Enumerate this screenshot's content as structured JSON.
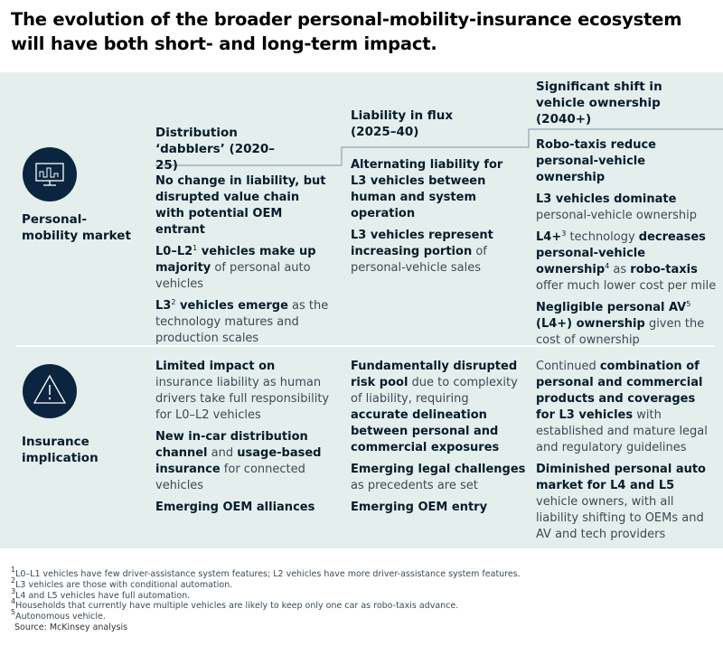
{
  "title": "The evolution of the broader personal-mobility-insurance ecosystem will have both short- and long-term impact.",
  "rows": [
    "Personal-mobility market",
    "Insurance implication"
  ],
  "columns": [
    "Distribution ‘dabblers’ (2020–25)",
    "Liability in flux (2025–40)",
    "Significant shift in vehicle ownership (2040+)"
  ],
  "cells": [
    [
      [
        [
          {
            "text": "No change in liability, but disrupted value chain with potential OEM entrant",
            "style": "bold"
          }
        ],
        [
          {
            "text": "L0–L2",
            "style": "bold"
          },
          {
            "text": "1",
            "style": "sup"
          },
          {
            "text": " vehicles make up majority",
            "style": "bold"
          },
          {
            "text": " of personal auto vehicles",
            "style": "regular"
          }
        ],
        [
          {
            "text": "L3",
            "style": "bold"
          },
          {
            "text": "2",
            "style": "sup"
          },
          {
            "text": " vehicles emerge",
            "style": "bold"
          },
          {
            "text": " as the technology matures and production scales",
            "style": "regular"
          }
        ]
      ],
      [
        [
          {
            "text": "Alternating liability for L3 vehicles between human and system operation",
            "style": "bold"
          }
        ],
        [
          {
            "text": "L3 vehicles represent increasing portion",
            "style": "bold"
          },
          {
            "text": " of personal-vehicle sales",
            "style": "regular"
          }
        ]
      ],
      [
        [
          {
            "text": "Robo-taxis reduce personal-vehicle ownership",
            "style": "bold"
          }
        ],
        [
          {
            "text": "L3 vehicles dominate",
            "style": "bold"
          },
          {
            "text": " personal-vehicle ownership",
            "style": "regular"
          }
        ],
        [
          {
            "text": "L4+",
            "style": "bold"
          },
          {
            "text": "3",
            "style": "sup"
          },
          {
            "text": " technology ",
            "style": "regular"
          },
          {
            "text": "decreases personal-vehicle ownership",
            "style": "bold"
          },
          {
            "text": "4",
            "style": "sup"
          },
          {
            "text": " as ",
            "style": "regular"
          },
          {
            "text": "robo-taxis",
            "style": "bold"
          },
          {
            "text": " offer much lower cost per mile",
            "style": "regular"
          }
        ],
        [
          {
            "text": "Negligible personal AV",
            "style": "bold"
          },
          {
            "text": "5",
            "style": "sup"
          },
          {
            "text": " (L4+) ownership",
            "style": "bold"
          },
          {
            "text": " given the cost of ownership",
            "style": "regular"
          }
        ]
      ]
    ],
    [
      [
        [
          {
            "text": "Limited impact on",
            "style": "bold"
          },
          {
            "text": " insurance liability as human drivers take full responsibility for L0–L2 vehicles",
            "style": "regular"
          }
        ],
        [
          {
            "text": "New in-car distribution channel",
            "style": "bold"
          },
          {
            "text": " and ",
            "style": "regular"
          },
          {
            "text": "usage-based insurance",
            "style": "bold"
          },
          {
            "text": " for connected vehicles",
            "style": "regular"
          }
        ],
        [
          {
            "text": "Emerging OEM alliances",
            "style": "bold"
          }
        ]
      ],
      [
        [
          {
            "text": "Fundamentally disrupted risk pool",
            "style": "bold"
          },
          {
            "text": " due to complexity of liability, requiring ",
            "style": "regular"
          },
          {
            "text": "accurate delineation between personal and commercial exposures",
            "style": "bold"
          }
        ],
        [
          {
            "text": "Emerging legal challenges",
            "style": "bold"
          },
          {
            "text": " as precedents are set",
            "style": "regular"
          }
        ],
        [
          {
            "text": "Emerging OEM entry",
            "style": "bold"
          }
        ]
      ],
      [
        [
          {
            "text": "Continued ",
            "style": "regular"
          },
          {
            "text": "combination of personal and commercial products and coverages for L3 vehicles",
            "style": "bold"
          },
          {
            "text": " with established and mature legal and regulatory guidelines",
            "style": "regular"
          }
        ],
        [
          {
            "text": "Diminished personal auto market for L4 and L5",
            "style": "bold"
          },
          {
            "text": " vehicle owners, with all liability shifting to OEMs and AV and tech providers",
            "style": "regular"
          }
        ]
      ]
    ]
  ],
  "footnotes": [
    [
      {
        "text": "1",
        "style": "sup"
      },
      {
        "text": "L0–L1 vehicles have few driver-assistance system features; L2 vehicles have more driver-assistance system features.",
        "style": "regular"
      }
    ],
    [
      {
        "text": "2",
        "style": "sup"
      },
      {
        "text": "L3 vehicles are those with conditional automation.",
        "style": "regular"
      }
    ],
    [
      {
        "text": "3",
        "style": "sup"
      },
      {
        "text": "L4 and L5 vehicles have full automation.",
        "style": "regular"
      }
    ],
    [
      {
        "text": "4",
        "style": "sup"
      },
      {
        "text": "Households that currently have multiple vehicles are likely to keep only one car as robo-taxis advance.",
        "style": "regular"
      }
    ],
    [
      {
        "text": "5",
        "style": "sup"
      },
      {
        "text": "Autonomous vehicle.",
        "style": "regular"
      }
    ]
  ],
  "source": "Source: McKinsey analysis"
}
